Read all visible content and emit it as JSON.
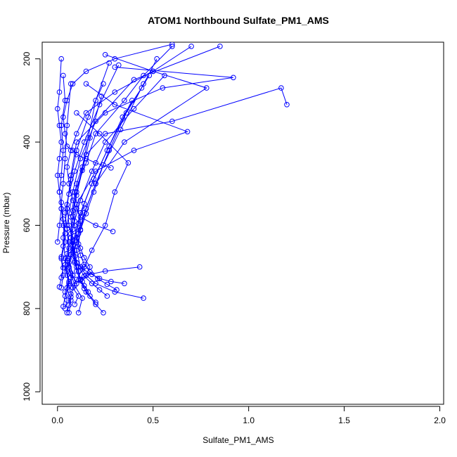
{
  "chart_data": {
    "type": "line",
    "title": "ATOM1 Northbound Sulfate_PM1_AMS",
    "xlabel": "Sulfate_PM1_AMS",
    "ylabel": "Pressure (mbar)",
    "xlim": [
      -0.08,
      2.02
    ],
    "ylim": [
      1030,
      160
    ],
    "y_reversed": true,
    "x_ticks": [
      "0.0",
      "0.5",
      "1.0",
      "1.5",
      "2.0"
    ],
    "y_ticks": [
      "200",
      "400",
      "600",
      "800",
      "1000"
    ],
    "grid": false,
    "legend": "none",
    "marker": "open-circle",
    "color": "#0000ff",
    "series": [
      {
        "x": [
          0.06,
          0.07,
          0.05,
          0.08,
          0.06,
          0.1,
          0.12,
          0.09,
          0.15,
          0.2,
          0.35,
          0.45,
          0.6
        ],
        "y": [
          810,
          780,
          750,
          720,
          690,
          640,
          590,
          520,
          450,
          380,
          300,
          240,
          170
        ]
      },
      {
        "x": [
          0.24,
          0.2,
          0.15,
          0.12,
          0.1,
          0.08,
          0.07,
          0.1,
          0.15,
          0.25,
          0.6,
          1.17,
          1.2
        ],
        "y": [
          810,
          790,
          760,
          730,
          700,
          650,
          580,
          500,
          430,
          380,
          350,
          270,
          310
        ]
      },
      {
        "x": [
          0.11,
          0.13,
          0.09,
          0.07,
          0.05,
          0.06,
          0.08,
          0.1,
          0.2,
          0.4,
          0.68,
          0.3,
          0.15
        ],
        "y": [
          810,
          775,
          745,
          715,
          685,
          655,
          610,
          550,
          470,
          420,
          375,
          310,
          260
        ]
      },
      {
        "x": [
          0.03,
          0.04,
          0.06,
          0.05,
          0.04,
          0.03,
          0.05,
          0.07,
          0.1,
          0.25,
          0.55,
          0.92,
          0.3
        ],
        "y": [
          795,
          770,
          740,
          710,
          680,
          630,
          560,
          480,
          400,
          330,
          270,
          245,
          220
        ]
      },
      {
        "x": [
          0.45,
          0.3,
          0.2,
          0.15,
          0.12,
          0.1,
          0.12,
          0.15,
          0.2,
          0.35,
          0.78,
          0.5,
          0.25
        ],
        "y": [
          775,
          760,
          740,
          720,
          700,
          660,
          610,
          560,
          500,
          400,
          270,
          230,
          190
        ]
      },
      {
        "x": [
          0.43,
          0.25,
          0.15,
          0.12,
          0.1,
          0.08,
          0.06,
          0.05,
          0.08,
          0.12,
          0.2,
          0.4,
          0.85
        ],
        "y": [
          700,
          710,
          720,
          730,
          740,
          720,
          680,
          600,
          520,
          440,
          350,
          250,
          170
        ]
      },
      {
        "x": [
          0.29,
          0.2,
          0.12,
          0.1,
          0.08,
          0.06,
          0.05,
          0.07,
          0.1,
          0.15,
          0.3,
          0.5,
          0.7
        ],
        "y": [
          615,
          600,
          580,
          560,
          540,
          500,
          460,
          420,
          380,
          330,
          280,
          230,
          170
        ]
      },
      {
        "x": [
          0.28,
          0.2,
          0.15,
          0.1,
          0.08,
          0.05,
          0.04,
          0.03,
          0.05,
          0.08,
          0.15,
          0.3,
          0.6
        ],
        "y": [
          462,
          450,
          440,
          430,
          420,
          410,
          380,
          340,
          300,
          260,
          230,
          200,
          165
        ]
      },
      {
        "x": [
          0.02,
          0.03,
          0.02,
          0.04,
          0.03,
          0.02,
          0.01,
          0.02,
          0.03,
          0.02,
          0.04,
          0.03
        ],
        "y": [
          750,
          720,
          680,
          640,
          600,
          560,
          520,
          480,
          420,
          360,
          300,
          240
        ]
      },
      {
        "x": [
          0.0,
          0.01,
          0.02,
          0.01,
          0.0,
          0.01,
          0.02,
          0.01,
          0.0,
          0.01,
          0.02
        ],
        "y": [
          640,
          600,
          560,
          520,
          480,
          440,
          400,
          360,
          320,
          280,
          200
        ]
      },
      {
        "x": [
          0.09,
          0.11,
          0.08,
          0.1,
          0.14,
          0.18,
          0.25,
          0.3,
          0.37,
          0.22,
          0.1
        ],
        "y": [
          790,
          770,
          750,
          730,
          700,
          660,
          600,
          520,
          450,
          380,
          330
        ]
      },
      {
        "x": [
          0.16,
          0.14,
          0.12,
          0.11,
          0.09,
          0.08,
          0.07,
          0.09,
          0.12,
          0.18,
          0.25,
          0.4,
          0.56
        ],
        "y": [
          760,
          745,
          730,
          710,
          690,
          665,
          630,
          590,
          540,
          470,
          400,
          320,
          240
        ]
      },
      {
        "x": [
          0.04,
          0.05,
          0.04,
          0.06,
          0.05,
          0.07,
          0.09,
          0.12,
          0.18,
          0.26,
          0.34,
          0.44,
          0.52
        ],
        "y": [
          800,
          780,
          760,
          735,
          705,
          670,
          625,
          570,
          500,
          420,
          340,
          270,
          200
        ]
      },
      {
        "x": [
          0.35,
          0.28,
          0.22,
          0.18,
          0.13,
          0.1,
          0.09,
          0.11,
          0.14,
          0.2,
          0.27,
          0.36,
          0.48
        ],
        "y": [
          740,
          735,
          728,
          718,
          705,
          690,
          660,
          620,
          570,
          500,
          420,
          330,
          240
        ]
      },
      {
        "x": [
          0.26,
          0.22,
          0.18,
          0.14,
          0.11,
          0.09,
          0.08,
          0.06,
          0.05,
          0.07,
          0.1,
          0.16,
          0.24
        ],
        "y": [
          770,
          755,
          740,
          722,
          700,
          675,
          640,
          600,
          550,
          490,
          420,
          340,
          260
        ]
      },
      {
        "x": [
          0.13,
          0.15,
          0.17,
          0.14,
          0.12,
          0.1,
          0.09,
          0.08,
          0.1,
          0.13,
          0.16,
          0.2,
          0.27
        ],
        "y": [
          735,
          720,
          700,
          678,
          655,
          630,
          600,
          565,
          520,
          460,
          390,
          300,
          210
        ]
      },
      {
        "x": [
          0.07,
          0.06,
          0.05,
          0.04,
          0.05,
          0.06,
          0.05,
          0.04,
          0.06,
          0.09,
          0.14,
          0.22,
          0.32
        ],
        "y": [
          765,
          745,
          720,
          695,
          668,
          640,
          608,
          570,
          525,
          470,
          400,
          310,
          215
        ]
      },
      {
        "x": [
          0.01,
          0.02,
          0.03,
          0.02,
          0.03,
          0.04,
          0.03,
          0.02,
          0.03,
          0.04,
          0.05,
          0.07
        ],
        "y": [
          748,
          726,
          702,
          676,
          650,
          620,
          585,
          545,
          500,
          440,
          360,
          260
        ]
      },
      {
        "x": [
          0.2,
          0.17,
          0.14,
          0.12,
          0.1,
          0.09,
          0.08,
          0.07,
          0.08,
          0.1,
          0.13,
          0.17,
          0.23
        ],
        "y": [
          785,
          770,
          752,
          732,
          710,
          686,
          656,
          620,
          578,
          528,
          468,
          390,
          290
        ]
      },
      {
        "x": [
          0.31,
          0.26,
          0.21,
          0.17,
          0.14,
          0.12,
          0.11,
          0.12,
          0.15,
          0.19,
          0.24,
          0.33,
          0.45
        ],
        "y": [
          755,
          742,
          728,
          712,
          694,
          672,
          645,
          612,
          572,
          520,
          455,
          370,
          260
        ]
      },
      {
        "x": [
          0.05,
          0.06,
          0.07,
          0.08,
          0.07,
          0.06,
          0.07,
          0.09,
          0.11,
          0.14,
          0.19,
          0.27,
          0.39
        ],
        "y": [
          810,
          792,
          772,
          750,
          726,
          700,
          670,
          636,
          596,
          548,
          488,
          410,
          300
        ]
      }
    ]
  }
}
